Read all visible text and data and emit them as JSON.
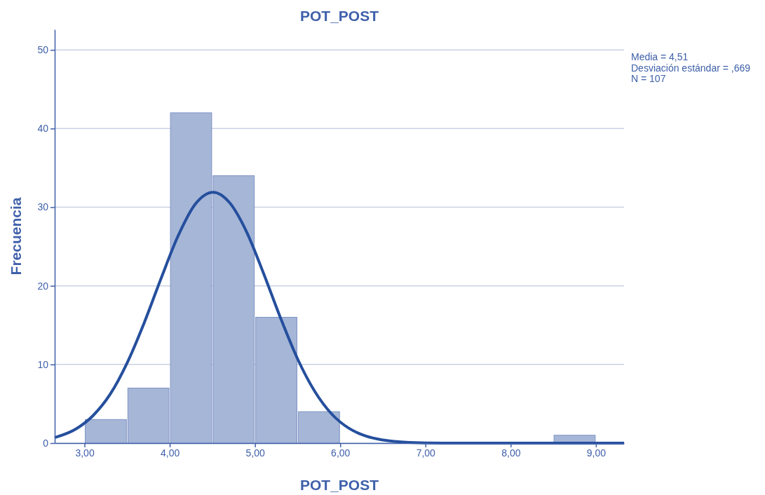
{
  "chart_data": {
    "type": "histogram",
    "title": "POT_POST",
    "xlabel": "POT_POST",
    "ylabel": "Frecuencia",
    "annotations": [
      "Media = 4,51",
      "Desviación estándar = ,669",
      "N = 107"
    ],
    "xlim": [
      2.65,
      9.33
    ],
    "ylim": [
      0,
      52.6
    ],
    "xticks": [
      {
        "value": 3,
        "label": "3,00"
      },
      {
        "value": 4,
        "label": "4,00"
      },
      {
        "value": 5,
        "label": "5,00"
      },
      {
        "value": 6,
        "label": "6,00"
      },
      {
        "value": 7,
        "label": "7,00"
      },
      {
        "value": 8,
        "label": "8,00"
      },
      {
        "value": 9,
        "label": "9,00"
      }
    ],
    "yticks": [
      0,
      10,
      20,
      30,
      40,
      50
    ],
    "grid": "y",
    "series": [
      {
        "color": "#a6b6d7",
        "bins": [
          3,
          3.5,
          4,
          4.5,
          5,
          5.5,
          6,
          6.5,
          7,
          7.5,
          8,
          8.5,
          9
        ],
        "values": [
          3,
          7,
          42,
          34,
          16,
          4,
          0,
          0,
          0,
          0,
          0,
          1
        ]
      },
      {
        "type": "line",
        "color": "#254f9d",
        "x": [
          2.65,
          2.9,
          3.1,
          3.3,
          3.5,
          3.7,
          3.9,
          4.1,
          4.3,
          4.51,
          4.7,
          4.9,
          5.1,
          5.3,
          5.5,
          5.7,
          5.9,
          6.1,
          6.3,
          6.5,
          6.8,
          7.2,
          8,
          9.33
        ],
        "values": [
          0.7,
          1.8,
          3.5,
          6.2,
          10.2,
          15.3,
          21,
          26.4,
          30.4,
          31.9,
          30.6,
          26.9,
          21.6,
          15.9,
          10.7,
          6.6,
          3.7,
          1.9,
          0.9,
          0.4,
          0.1,
          0,
          0,
          0
        ]
      }
    ]
  }
}
